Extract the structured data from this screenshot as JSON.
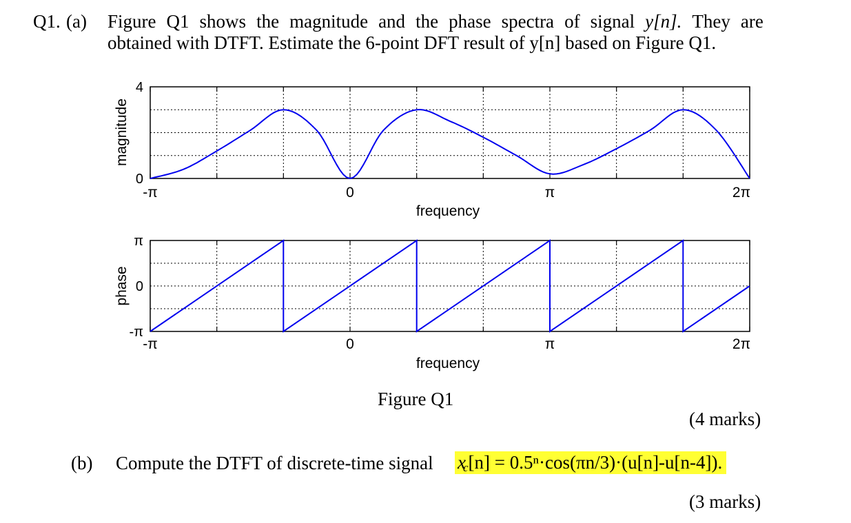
{
  "question": {
    "label": "Q1.",
    "part_a": {
      "label": "(a)",
      "line1_words": [
        "Figure",
        "Q1",
        "shows",
        "the",
        "magnitude",
        "and",
        "the",
        "phase",
        "spectra",
        "of",
        "signal",
        "y[n].",
        "They",
        "are"
      ],
      "line2": "obtained with DTFT. Estimate the 6-point DFT result of y[n] based on Figure Q1.",
      "marks": "(4 marks)"
    },
    "figure_caption": "Figure Q1",
    "part_b": {
      "label": "(b)",
      "text": "Compute the DTFT of discrete-time signal",
      "formula": "x[n] = 0.5ⁿ·cos(πn/3)·(u[n]-u[n-4]).",
      "formula_subscript": "c",
      "highlight_color": "#ffff33",
      "marks": "(3 marks)"
    }
  },
  "chart_data": [
    {
      "type": "line",
      "ylabel": "magnitude",
      "xlabel": "frequency",
      "x_ticks": [
        "-π",
        "0",
        "π",
        "2π"
      ],
      "y_ticks": [
        "4",
        "0"
      ],
      "xlim": [
        "-π",
        "2π"
      ],
      "ylim": [
        0,
        4
      ],
      "grid": true,
      "color": "#0000ee",
      "series": [
        {
          "x": [
            -3.1416,
            -2.618,
            -2.0944,
            -1.5708,
            -1.0472,
            -0.5236,
            0,
            0.5236,
            1.0472,
            1.5708,
            2.0944,
            2.618,
            3.1416,
            3.6652,
            4.1888,
            4.7124,
            5.236,
            5.7596,
            6.2832
          ],
          "y": [
            0,
            0.4,
            1.2,
            2.1,
            3.0,
            2.1,
            0,
            2.1,
            3.0,
            2.5,
            1.8,
            1.0,
            0.2,
            0.6,
            1.3,
            2.1,
            3.0,
            2.1,
            0
          ]
        }
      ]
    },
    {
      "type": "line",
      "ylabel": "phase",
      "xlabel": "frequency",
      "x_ticks": [
        "-π",
        "0",
        "π",
        "2π"
      ],
      "y_ticks": [
        "π",
        "0",
        "-π"
      ],
      "xlim": [
        "-π",
        "2π"
      ],
      "ylim": [
        "-π",
        "π"
      ],
      "grid": true,
      "color": "#0000ee",
      "series": [
        {
          "x": [
            -3.1416,
            -1.0472,
            -1.0472,
            1.0472,
            1.0472,
            3.1416,
            3.1416,
            5.236,
            5.236,
            6.2832
          ],
          "y": [
            -3.1416,
            3.1416,
            -3.1416,
            3.1416,
            -3.1416,
            3.1416,
            -3.1416,
            3.1416,
            -3.1416,
            0
          ]
        }
      ]
    }
  ]
}
